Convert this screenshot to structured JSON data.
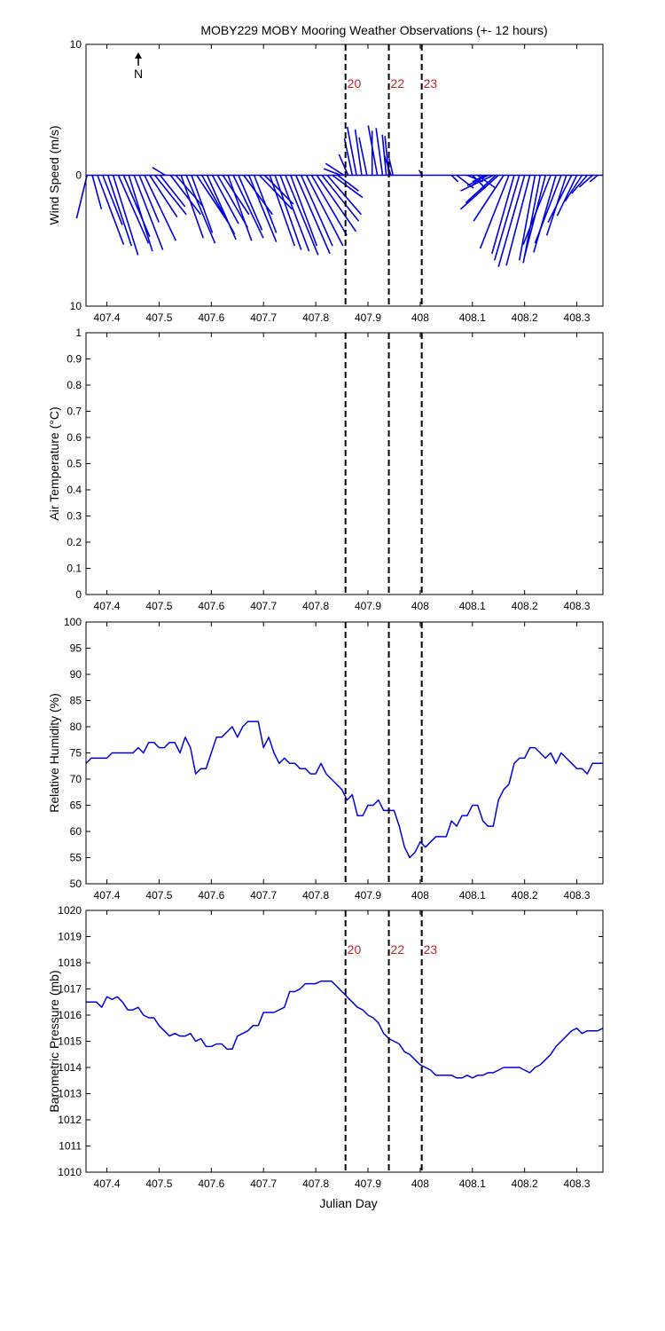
{
  "figure": {
    "title": "MOBY229 MOBY Mooring Weather Observations (+- 12 hours)",
    "north_label": "N",
    "xlabel": "Julian Day"
  },
  "chart_data": [
    {
      "id": "wind",
      "type": "vector",
      "title": "MOBY229 MOBY Mooring Weather Observations (+- 12 hours)",
      "ylabel": "Wind Speed (m/s)",
      "xlim": [
        407.36,
        408.35
      ],
      "ylim": [
        -10,
        10
      ],
      "yticks": [
        -10,
        0,
        10
      ],
      "ytick_labels": [
        "10",
        "0",
        "10"
      ],
      "xticks": [
        407.4,
        407.5,
        407.6,
        407.7,
        407.8,
        407.9,
        408,
        408.1,
        408.2,
        408.3
      ],
      "xtick_labels": [
        "407.4",
        "407.5",
        "407.6",
        "407.7",
        "407.8",
        "407.9",
        "408",
        "408.1",
        "408.2",
        "408.3"
      ],
      "markers": [
        {
          "x": 407.857,
          "label": "20"
        },
        {
          "x": 407.94,
          "label": "22"
        },
        {
          "x": 408.003,
          "label": "23"
        }
      ],
      "marker_color": "#cc2222",
      "series_color": "#0000dd",
      "vectors": [
        {
          "x": 407.362,
          "u": -0.8,
          "v": -3.3
        },
        {
          "x": 407.372,
          "u": 0.7,
          "v": -2.6
        },
        {
          "x": 407.382,
          "u": 2.0,
          "v": -5.3
        },
        {
          "x": 407.392,
          "u": 1.5,
          "v": -3.8
        },
        {
          "x": 407.402,
          "u": 1.8,
          "v": -5.4
        },
        {
          "x": 407.412,
          "u": 1.9,
          "v": -6.1
        },
        {
          "x": 407.422,
          "u": 2.3,
          "v": -5.2
        },
        {
          "x": 407.432,
          "u": 2.0,
          "v": -4.7
        },
        {
          "x": 407.442,
          "u": 1.8,
          "v": -5.8
        },
        {
          "x": 407.452,
          "u": 2.2,
          "v": -5.7
        },
        {
          "x": 407.462,
          "u": 1.5,
          "v": -3.6
        },
        {
          "x": 407.472,
          "u": 2.4,
          "v": -5.0
        },
        {
          "x": 407.482,
          "u": 2.1,
          "v": -3.2
        },
        {
          "x": 407.492,
          "u": 2.4,
          "v": -3.0
        },
        {
          "x": 407.502,
          "u": 1.9,
          "v": -2.4
        },
        {
          "x": 407.512,
          "u": -1.0,
          "v": 0.6
        },
        {
          "x": 407.522,
          "u": 2.3,
          "v": -3.0
        },
        {
          "x": 407.532,
          "u": 2.1,
          "v": -2.4
        },
        {
          "x": 407.542,
          "u": 1.7,
          "v": -4.8
        },
        {
          "x": 407.552,
          "u": 2.2,
          "v": -5.2
        },
        {
          "x": 407.562,
          "u": 1.6,
          "v": -4.4
        },
        {
          "x": 407.572,
          "u": 2.4,
          "v": -3.6
        },
        {
          "x": 407.582,
          "u": 2.5,
          "v": -4.5
        },
        {
          "x": 407.592,
          "u": 2.2,
          "v": -4.9
        },
        {
          "x": 407.602,
          "u": 2.0,
          "v": -3.7
        },
        {
          "x": 407.612,
          "u": 2.3,
          "v": -4.0
        },
        {
          "x": 407.622,
          "u": 2.0,
          "v": -3.0
        },
        {
          "x": 407.632,
          "u": 1.8,
          "v": -5.0
        },
        {
          "x": 407.642,
          "u": 2.3,
          "v": -4.8
        },
        {
          "x": 407.652,
          "u": 1.8,
          "v": -4.2
        },
        {
          "x": 407.662,
          "u": 2.2,
          "v": -3.0
        },
        {
          "x": 407.672,
          "u": 2.1,
          "v": -5.1
        },
        {
          "x": 407.682,
          "u": 1.7,
          "v": -4.4
        },
        {
          "x": 407.692,
          "u": 2.5,
          "v": -2.6
        },
        {
          "x": 407.702,
          "u": 2.2,
          "v": -2.2
        },
        {
          "x": 407.712,
          "u": 1.9,
          "v": -5.4
        },
        {
          "x": 407.722,
          "u": 2.0,
          "v": -5.7
        },
        {
          "x": 407.732,
          "u": 2.2,
          "v": -5.8
        },
        {
          "x": 407.742,
          "u": 2.5,
          "v": -6.1
        },
        {
          "x": 407.752,
          "u": 2.0,
          "v": -5.4
        },
        {
          "x": 407.762,
          "u": 2.6,
          "v": -6.0
        },
        {
          "x": 407.772,
          "u": 2.4,
          "v": -5.4
        },
        {
          "x": 407.782,
          "u": 2.8,
          "v": -5.4
        },
        {
          "x": 407.792,
          "u": 2.7,
          "v": -4.6
        },
        {
          "x": 407.802,
          "u": 3.0,
          "v": -4.3
        },
        {
          "x": 407.812,
          "u": 2.8,
          "v": -3.5
        },
        {
          "x": 407.822,
          "u": 2.6,
          "v": -3.0
        },
        {
          "x": 407.832,
          "u": 2.3,
          "v": -1.7
        },
        {
          "x": 407.842,
          "u": 1.6,
          "v": -1.2
        },
        {
          "x": 407.848,
          "u": -1.3,
          "v": 0.5
        },
        {
          "x": 407.854,
          "u": -1.4,
          "v": 0.9
        },
        {
          "x": 407.862,
          "u": -0.7,
          "v": 1.6
        },
        {
          "x": 407.87,
          "u": -0.6,
          "v": 2.8
        },
        {
          "x": 407.878,
          "u": -0.7,
          "v": 3.7
        },
        {
          "x": 407.888,
          "u": -0.5,
          "v": 3.5
        },
        {
          "x": 407.898,
          "u": -0.6,
          "v": 2.9
        },
        {
          "x": 407.908,
          "u": 0.0,
          "v": 3.4
        },
        {
          "x": 407.918,
          "u": -0.7,
          "v": 3.8
        },
        {
          "x": 407.928,
          "u": -0.5,
          "v": 3.6
        },
        {
          "x": 407.935,
          "u": -0.3,
          "v": 3.1
        },
        {
          "x": 407.94,
          "u": -0.3,
          "v": 3.0
        },
        {
          "x": 407.944,
          "u": -0.5,
          "v": 1.5
        },
        {
          "x": 407.948,
          "u": -0.3,
          "v": 1.3
        },
        {
          "x": 408.003,
          "u": -0.2,
          "v": 0.4
        },
        {
          "x": 408.06,
          "u": 0.5,
          "v": -0.5
        },
        {
          "x": 408.07,
          "u": 1.3,
          "v": -1.0
        },
        {
          "x": 408.09,
          "u": 1.2,
          "v": -0.5
        },
        {
          "x": 408.1,
          "u": 1.0,
          "v": -1.0
        },
        {
          "x": 408.11,
          "u": 1.4,
          "v": -1.0
        },
        {
          "x": 408.12,
          "u": -0.8,
          "v": -0.8
        },
        {
          "x": 408.125,
          "u": -1.0,
          "v": -0.5
        },
        {
          "x": 408.13,
          "u": -1.6,
          "v": -0.8
        },
        {
          "x": 408.14,
          "u": -2.5,
          "v": -1.2
        },
        {
          "x": 408.145,
          "u": -2.3,
          "v": -2.1
        },
        {
          "x": 408.15,
          "u": -2.9,
          "v": -2.6
        },
        {
          "x": 408.16,
          "u": -2.3,
          "v": -3.5
        },
        {
          "x": 408.17,
          "u": -2.2,
          "v": -5.6
        },
        {
          "x": 408.18,
          "u": -1.7,
          "v": -6.0
        },
        {
          "x": 408.19,
          "u": -1.9,
          "v": -6.5
        },
        {
          "x": 408.2,
          "u": -2.0,
          "v": -7.0
        },
        {
          "x": 408.21,
          "u": -1.8,
          "v": -6.9
        },
        {
          "x": 408.22,
          "u": -1.2,
          "v": -6.5
        },
        {
          "x": 408.23,
          "u": -1.3,
          "v": -6.7
        },
        {
          "x": 408.24,
          "u": -1.6,
          "v": -6.2
        },
        {
          "x": 408.25,
          "u": -2.1,
          "v": -5.3
        },
        {
          "x": 408.26,
          "u": -1.7,
          "v": -5.9
        },
        {
          "x": 408.27,
          "u": -2.0,
          "v": -5.2
        },
        {
          "x": 408.28,
          "u": -1.5,
          "v": -4.6
        },
        {
          "x": 408.29,
          "u": -1.8,
          "v": -3.6
        },
        {
          "x": 408.3,
          "u": -1.5,
          "v": -3.1
        },
        {
          "x": 408.31,
          "u": -1.3,
          "v": -2.0
        },
        {
          "x": 408.32,
          "u": -1.2,
          "v": -1.4
        },
        {
          "x": 408.33,
          "u": -1.0,
          "v": -0.9
        },
        {
          "x": 408.34,
          "u": -0.6,
          "v": -0.5
        }
      ]
    },
    {
      "id": "airtemp",
      "type": "line",
      "ylabel": "Air Temperature (°C)",
      "xlim": [
        407.36,
        408.35
      ],
      "ylim": [
        0,
        1
      ],
      "yticks": [
        0,
        0.1,
        0.2,
        0.3,
        0.4,
        0.5,
        0.6,
        0.7,
        0.8,
        0.9,
        1
      ],
      "ytick_labels": [
        "0",
        "0.1",
        "0.2",
        "0.3",
        "0.4",
        "0.5",
        "0.6",
        "0.7",
        "0.8",
        "0.9",
        "1"
      ],
      "xticks": [
        407.4,
        407.5,
        407.6,
        407.7,
        407.8,
        407.9,
        408,
        408.1,
        408.2,
        408.3
      ],
      "xtick_labels": [
        "407.4",
        "407.5",
        "407.6",
        "407.7",
        "407.8",
        "407.9",
        "408",
        "408.1",
        "408.2",
        "408.3"
      ],
      "markers": [
        {
          "x": 407.857,
          "label": ""
        },
        {
          "x": 407.94,
          "label": ""
        },
        {
          "x": 408.003,
          "label": ""
        }
      ],
      "series_color": "#0000dd",
      "x": [],
      "y": []
    },
    {
      "id": "humidity",
      "type": "line",
      "ylabel": "Relative Humidity (%)",
      "xlim": [
        407.36,
        408.35
      ],
      "ylim": [
        50,
        100
      ],
      "yticks": [
        50,
        55,
        60,
        65,
        70,
        75,
        80,
        85,
        90,
        95,
        100
      ],
      "ytick_labels": [
        "50",
        "55",
        "60",
        "65",
        "70",
        "75",
        "80",
        "85",
        "90",
        "95",
        "100"
      ],
      "xticks": [
        407.4,
        407.5,
        407.6,
        407.7,
        407.8,
        407.9,
        408,
        408.1,
        408.2,
        408.3
      ],
      "xtick_labels": [
        "407.4",
        "407.5",
        "407.6",
        "407.7",
        "407.8",
        "407.9",
        "408",
        "408.1",
        "408.2",
        "408.3"
      ],
      "markers": [
        {
          "x": 407.857,
          "label": ""
        },
        {
          "x": 407.94,
          "label": ""
        },
        {
          "x": 408.003,
          "label": ""
        }
      ],
      "series_color": "#0000dd",
      "x": [
        407.36,
        407.37,
        407.38,
        407.39,
        407.4,
        407.41,
        407.42,
        407.43,
        407.44,
        407.45,
        407.46,
        407.47,
        407.48,
        407.49,
        407.5,
        407.51,
        407.52,
        407.53,
        407.54,
        407.55,
        407.56,
        407.57,
        407.58,
        407.59,
        407.6,
        407.61,
        407.62,
        407.63,
        407.64,
        407.65,
        407.66,
        407.67,
        407.68,
        407.69,
        407.7,
        407.71,
        407.72,
        407.73,
        407.74,
        407.75,
        407.76,
        407.77,
        407.78,
        407.79,
        407.8,
        407.81,
        407.82,
        407.83,
        407.84,
        407.85,
        407.86,
        407.87,
        407.88,
        407.89,
        407.9,
        407.91,
        407.92,
        407.93,
        407.94,
        407.95,
        407.96,
        407.97,
        407.98,
        407.99,
        408.0,
        408.01,
        408.02,
        408.03,
        408.04,
        408.05,
        408.06,
        408.07,
        408.08,
        408.09,
        408.1,
        408.11,
        408.12,
        408.13,
        408.14,
        408.15,
        408.16,
        408.17,
        408.18,
        408.19,
        408.2,
        408.21,
        408.22,
        408.23,
        408.24,
        408.25,
        408.26,
        408.27,
        408.28,
        408.29,
        408.3,
        408.31,
        408.32,
        408.33,
        408.34,
        408.35
      ],
      "y": [
        73,
        74,
        74,
        74,
        74,
        75,
        75,
        75,
        75,
        75,
        76,
        75,
        77,
        77,
        76,
        76,
        77,
        77,
        75,
        78,
        76,
        71,
        72,
        72,
        75,
        78,
        78,
        79,
        80,
        78,
        80,
        81,
        81,
        81,
        76,
        78,
        75,
        73,
        74,
        73,
        73,
        72,
        72,
        71,
        71,
        73,
        71,
        70,
        69,
        68,
        66,
        67,
        63,
        63,
        65,
        65,
        66,
        64,
        64,
        64,
        61,
        57,
        55,
        56,
        58,
        57,
        58,
        59,
        59,
        59,
        62,
        61,
        63,
        63,
        65,
        65,
        62,
        61,
        61,
        66,
        68,
        69,
        73,
        74,
        74,
        76,
        76,
        75,
        74,
        75,
        73,
        75,
        74,
        73,
        72,
        72,
        71,
        73,
        73,
        73
      ]
    },
    {
      "id": "pressure",
      "type": "line",
      "ylabel": "Barometric Pressure (mb)",
      "xlabel": "Julian Day",
      "xlim": [
        407.36,
        408.35
      ],
      "ylim": [
        1010,
        1020
      ],
      "yticks": [
        1010,
        1011,
        1012,
        1013,
        1014,
        1015,
        1016,
        1017,
        1018,
        1019,
        1020
      ],
      "ytick_labels": [
        "1010",
        "1011",
        "1012",
        "1013",
        "1014",
        "1015",
        "1016",
        "1017",
        "1018",
        "1019",
        "1020"
      ],
      "xticks": [
        407.4,
        407.5,
        407.6,
        407.7,
        407.8,
        407.9,
        408,
        408.1,
        408.2,
        408.3
      ],
      "xtick_labels": [
        "407.4",
        "407.5",
        "407.6",
        "407.7",
        "407.8",
        "407.9",
        "408",
        "408.1",
        "408.2",
        "408.3"
      ],
      "markers": [
        {
          "x": 407.857,
          "label": "20"
        },
        {
          "x": 407.94,
          "label": "22"
        },
        {
          "x": 408.003,
          "label": "23"
        }
      ],
      "marker_color": "#cc2222",
      "series_color": "#0000dd",
      "x": [
        407.36,
        407.37,
        407.38,
        407.39,
        407.4,
        407.41,
        407.42,
        407.43,
        407.44,
        407.45,
        407.46,
        407.47,
        407.48,
        407.49,
        407.5,
        407.51,
        407.52,
        407.53,
        407.54,
        407.55,
        407.56,
        407.57,
        407.58,
        407.59,
        407.6,
        407.61,
        407.62,
        407.63,
        407.64,
        407.65,
        407.66,
        407.67,
        407.68,
        407.69,
        407.7,
        407.71,
        407.72,
        407.73,
        407.74,
        407.75,
        407.76,
        407.77,
        407.78,
        407.79,
        407.8,
        407.81,
        407.82,
        407.83,
        407.84,
        407.85,
        407.86,
        407.87,
        407.88,
        407.89,
        407.9,
        407.91,
        407.92,
        407.93,
        407.94,
        407.95,
        407.96,
        407.97,
        407.98,
        407.99,
        408.0,
        408.01,
        408.02,
        408.03,
        408.04,
        408.05,
        408.06,
        408.07,
        408.08,
        408.09,
        408.1,
        408.11,
        408.12,
        408.13,
        408.14,
        408.15,
        408.16,
        408.17,
        408.18,
        408.19,
        408.2,
        408.21,
        408.22,
        408.23,
        408.24,
        408.25,
        408.26,
        408.27,
        408.28,
        408.29,
        408.3,
        408.31,
        408.32,
        408.33,
        408.34,
        408.35
      ],
      "y": [
        1016.5,
        1016.5,
        1016.5,
        1016.3,
        1016.7,
        1016.6,
        1016.7,
        1016.5,
        1016.2,
        1016.2,
        1016.3,
        1016.0,
        1015.9,
        1015.9,
        1015.6,
        1015.4,
        1015.2,
        1015.3,
        1015.2,
        1015.2,
        1015.3,
        1015.0,
        1015.1,
        1014.8,
        1014.8,
        1014.9,
        1014.9,
        1014.7,
        1014.7,
        1015.2,
        1015.3,
        1015.4,
        1015.6,
        1015.6,
        1016.1,
        1016.1,
        1016.1,
        1016.2,
        1016.3,
        1016.9,
        1016.9,
        1017.0,
        1017.2,
        1017.2,
        1017.2,
        1017.3,
        1017.3,
        1017.3,
        1017.1,
        1016.9,
        1016.7,
        1016.5,
        1016.3,
        1016.2,
        1016.0,
        1015.9,
        1015.7,
        1015.3,
        1015.1,
        1015.0,
        1014.9,
        1014.6,
        1014.5,
        1014.3,
        1014.1,
        1014.0,
        1013.9,
        1013.7,
        1013.7,
        1013.7,
        1013.7,
        1013.6,
        1013.6,
        1013.7,
        1013.6,
        1013.7,
        1013.7,
        1013.8,
        1013.8,
        1013.9,
        1014.0,
        1014.0,
        1014.0,
        1014.0,
        1013.9,
        1013.8,
        1014.0,
        1014.1,
        1014.3,
        1014.5,
        1014.8,
        1015.0,
        1015.2,
        1015.4,
        1015.5,
        1015.3,
        1015.4,
        1015.4,
        1015.4,
        1015.5
      ]
    }
  ]
}
